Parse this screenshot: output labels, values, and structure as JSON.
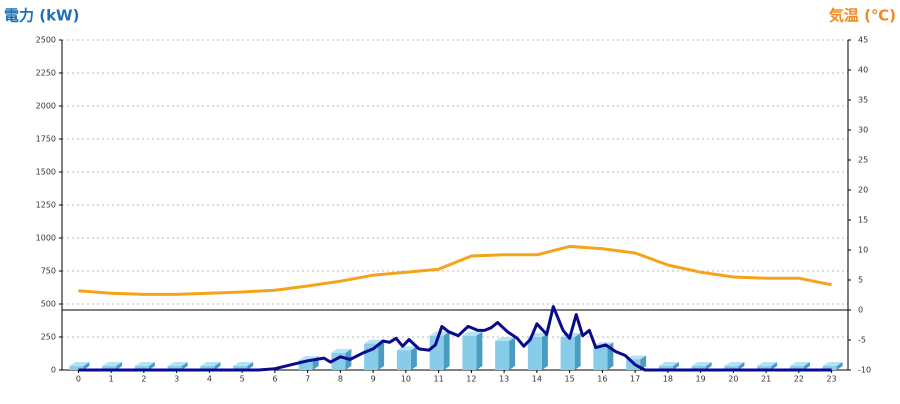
{
  "chart_data": {
    "type": "combo",
    "ylabel": "電力 (kW)",
    "y2label": "気温 (℃)",
    "ylabel_color": "#1f6fb5",
    "y2label_color": "#f08a1c",
    "xlim": [
      -0.5,
      23.5
    ],
    "xticks": [
      0,
      1,
      2,
      3,
      4,
      5,
      6,
      7,
      8,
      9,
      10,
      11,
      12,
      13,
      14,
      15,
      16,
      17,
      18,
      19,
      20,
      21,
      22,
      23
    ],
    "ylim": [
      0,
      2500
    ],
    "yticks": [
      0,
      250,
      500,
      750,
      1000,
      1250,
      1500,
      1750,
      2000,
      2250,
      2500
    ],
    "y2lim": [
      -10,
      45
    ],
    "y2ticks": [
      -10,
      -5,
      0,
      5,
      10,
      15,
      20,
      25,
      30,
      35,
      40,
      45
    ],
    "grid": true,
    "series": [
      {
        "type": "bar",
        "color": "#87cdea",
        "x": [
          0,
          1,
          2,
          3,
          4,
          5,
          6,
          7,
          8,
          9,
          10,
          11,
          12,
          13,
          14,
          15,
          16,
          17,
          18,
          19,
          20,
          21,
          22,
          23
        ],
        "values": [
          30,
          30,
          30,
          30,
          30,
          30,
          0,
          75,
          130,
          200,
          150,
          260,
          260,
          220,
          250,
          250,
          180,
          80,
          30,
          30,
          30,
          30,
          30,
          30
        ]
      },
      {
        "type": "line",
        "color": "#0a0a8c",
        "x": [
          0,
          1,
          2,
          3,
          4,
          5,
          5.5,
          6,
          6.5,
          7,
          7.5,
          7.7,
          8,
          8.3,
          8.7,
          9,
          9.3,
          9.5,
          9.7,
          9.9,
          10.1,
          10.4,
          10.7,
          10.9,
          11.1,
          11.3,
          11.6,
          11.9,
          12.2,
          12.4,
          12.6,
          12.8,
          13.1,
          13.4,
          13.6,
          13.8,
          14.0,
          14.3,
          14.5,
          14.8,
          15.0,
          15.2,
          15.4,
          15.6,
          15.8,
          16.1,
          16.4,
          16.7,
          17.0,
          17.3,
          18,
          19,
          20,
          21,
          22,
          23
        ],
        "values": [
          0,
          0,
          0,
          0,
          0,
          0,
          0,
          10,
          40,
          70,
          90,
          60,
          100,
          80,
          130,
          160,
          220,
          210,
          240,
          180,
          230,
          160,
          150,
          190,
          330,
          290,
          260,
          330,
          300,
          300,
          320,
          360,
          290,
          240,
          180,
          230,
          350,
          270,
          480,
          300,
          240,
          420,
          260,
          300,
          170,
          190,
          140,
          110,
          40,
          0,
          0,
          0,
          0,
          0,
          0,
          0
        ]
      },
      {
        "type": "line",
        "axis": "y2",
        "color": "#f5a31a",
        "x": [
          0,
          1,
          2,
          3,
          4,
          5,
          6,
          7,
          8,
          9,
          10,
          11,
          12,
          13,
          14,
          15,
          16,
          17,
          18,
          19,
          20,
          21,
          22,
          23
        ],
        "values": [
          3.2,
          2.8,
          2.6,
          2.6,
          2.8,
          3.0,
          3.3,
          4.0,
          4.8,
          5.8,
          6.3,
          6.8,
          9.0,
          9.2,
          9.2,
          10.6,
          10.2,
          9.5,
          7.5,
          6.3,
          5.5,
          5.3,
          5.3,
          4.2
        ]
      }
    ]
  }
}
